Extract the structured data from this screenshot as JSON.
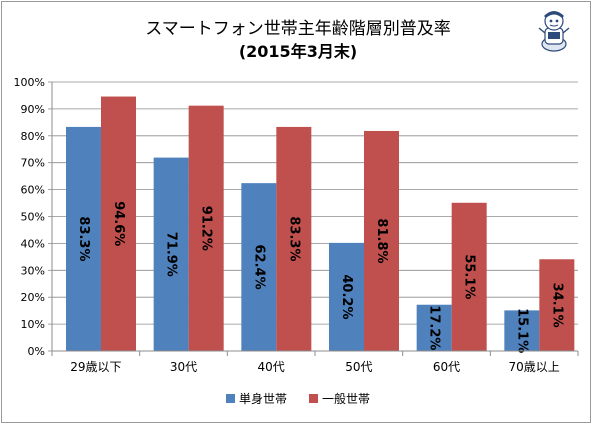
{
  "chart_data": {
    "type": "bar",
    "title": "スマートフォン世帯主年齢階層別普及率",
    "subtitle": "(2015年3月末)",
    "categories": [
      "29歳以下",
      "30代",
      "40代",
      "50代",
      "60代",
      "70歳以上"
    ],
    "series": [
      {
        "name": "単身世帯",
        "color": "#4f81bd",
        "values": [
          83.3,
          71.9,
          62.4,
          40.2,
          17.2,
          15.1
        ],
        "labels": [
          "83.3%",
          "71.9%",
          "62.4%",
          "40.2%",
          "17.2%",
          "15.1%"
        ]
      },
      {
        "name": "一般世帯",
        "color": "#c0504d",
        "values": [
          94.6,
          91.2,
          83.3,
          81.8,
          55.1,
          34.1
        ],
        "labels": [
          "94.6%",
          "91.2%",
          "83.3%",
          "81.8%",
          "55.1%",
          "34.1%"
        ]
      }
    ],
    "ylim": [
      0,
      100
    ],
    "yticks": [
      "0%",
      "10%",
      "20%",
      "30%",
      "40%",
      "50%",
      "60%",
      "70%",
      "80%",
      "90%",
      "100%"
    ],
    "grid": true,
    "legend": "bottom"
  }
}
